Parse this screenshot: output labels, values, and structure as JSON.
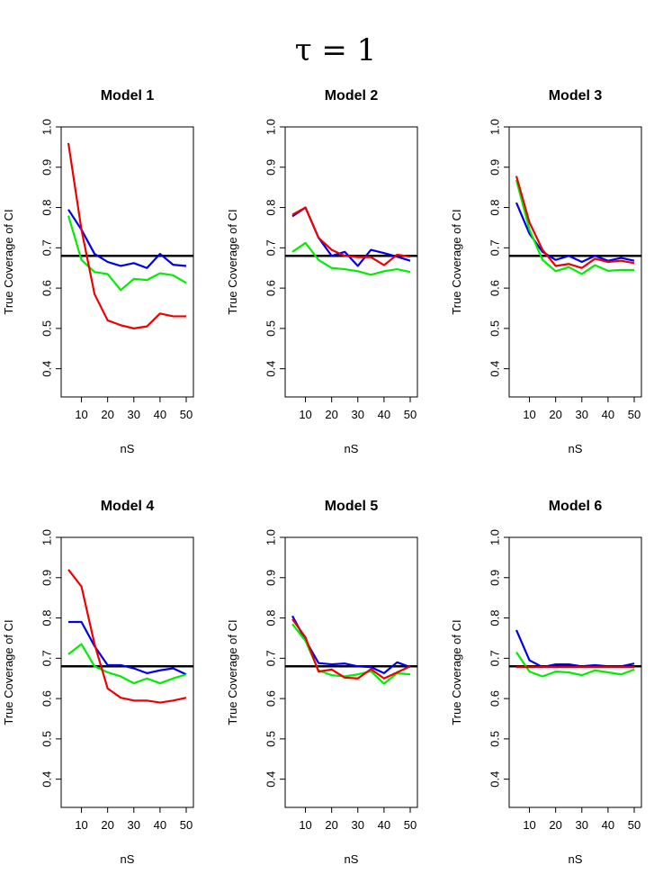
{
  "figure": {
    "suptitle": "τ = 1"
  },
  "chart_data": [
    {
      "type": "line",
      "title": "Model 1",
      "xlabel": "nS",
      "ylabel": "True Coverage of CI",
      "x": [
        5,
        10,
        15,
        20,
        25,
        30,
        35,
        40,
        45,
        50
      ],
      "xticks": [
        10,
        20,
        30,
        40,
        50
      ],
      "yticks": [
        0.4,
        0.5,
        0.6,
        0.7,
        0.8,
        0.9,
        1.0
      ],
      "xlim": [
        5,
        50
      ],
      "ylim": [
        0.33,
        1.0
      ],
      "reference_line": 0.68,
      "grid": false,
      "series": [
        {
          "color": "#0000ee",
          "values": [
            0.795,
            0.745,
            0.685,
            0.665,
            0.655,
            0.662,
            0.65,
            0.685,
            0.658,
            0.655
          ]
        },
        {
          "color": "#00ee00",
          "values": [
            0.78,
            0.67,
            0.64,
            0.635,
            0.595,
            0.623,
            0.62,
            0.637,
            0.632,
            0.613
          ]
        },
        {
          "color": "#ee0000",
          "values": [
            0.96,
            0.745,
            0.585,
            0.52,
            0.508,
            0.5,
            0.505,
            0.537,
            0.53,
            0.53
          ]
        }
      ]
    },
    {
      "type": "line",
      "title": "Model 2",
      "xlabel": "nS",
      "ylabel": "True Coverage of CI",
      "x": [
        5,
        10,
        15,
        20,
        25,
        30,
        35,
        40,
        45,
        50
      ],
      "xticks": [
        10,
        20,
        30,
        40,
        50
      ],
      "yticks": [
        0.4,
        0.5,
        0.6,
        0.7,
        0.8,
        0.9,
        1.0
      ],
      "xlim": [
        5,
        50
      ],
      "ylim": [
        0.33,
        1.0
      ],
      "reference_line": 0.68,
      "grid": false,
      "series": [
        {
          "color": "#0000ee",
          "values": [
            0.778,
            0.8,
            0.725,
            0.68,
            0.69,
            0.655,
            0.695,
            0.687,
            0.678,
            0.668
          ]
        },
        {
          "color": "#00ee00",
          "values": [
            0.69,
            0.712,
            0.67,
            0.65,
            0.647,
            0.642,
            0.633,
            0.642,
            0.647,
            0.64
          ]
        },
        {
          "color": "#ee0000",
          "values": [
            0.782,
            0.8,
            0.725,
            0.695,
            0.68,
            0.677,
            0.677,
            0.657,
            0.683,
            0.678
          ]
        }
      ]
    },
    {
      "type": "line",
      "title": "Model 3",
      "xlabel": "nS",
      "ylabel": "True Coverage of CI",
      "x": [
        5,
        10,
        15,
        20,
        25,
        30,
        35,
        40,
        45,
        50
      ],
      "xticks": [
        10,
        20,
        30,
        40,
        50
      ],
      "yticks": [
        0.4,
        0.5,
        0.6,
        0.7,
        0.8,
        0.9,
        1.0
      ],
      "xlim": [
        5,
        50
      ],
      "ylim": [
        0.33,
        1.0
      ],
      "reference_line": 0.68,
      "grid": false,
      "series": [
        {
          "color": "#0000ee",
          "values": [
            0.812,
            0.735,
            0.69,
            0.67,
            0.68,
            0.665,
            0.68,
            0.668,
            0.675,
            0.668
          ]
        },
        {
          "color": "#00ee00",
          "values": [
            0.868,
            0.745,
            0.67,
            0.642,
            0.652,
            0.635,
            0.657,
            0.643,
            0.645,
            0.645
          ]
        },
        {
          "color": "#ee0000",
          "values": [
            0.878,
            0.763,
            0.695,
            0.655,
            0.66,
            0.65,
            0.673,
            0.665,
            0.668,
            0.662
          ]
        }
      ]
    },
    {
      "type": "line",
      "title": "Model 4",
      "xlabel": "nS",
      "ylabel": "True Coverage of CI",
      "x": [
        5,
        10,
        15,
        20,
        25,
        30,
        35,
        40,
        45,
        50
      ],
      "xticks": [
        10,
        20,
        30,
        40,
        50
      ],
      "yticks": [
        0.4,
        0.5,
        0.6,
        0.7,
        0.8,
        0.9,
        1.0
      ],
      "xlim": [
        5,
        50
      ],
      "ylim": [
        0.33,
        1.0
      ],
      "reference_line": 0.68,
      "grid": false,
      "series": [
        {
          "color": "#0000ee",
          "values": [
            0.79,
            0.79,
            0.73,
            0.683,
            0.683,
            0.675,
            0.663,
            0.67,
            0.675,
            0.66
          ]
        },
        {
          "color": "#00ee00",
          "values": [
            0.71,
            0.735,
            0.68,
            0.665,
            0.655,
            0.638,
            0.65,
            0.638,
            0.65,
            0.66
          ]
        },
        {
          "color": "#ee0000",
          "values": [
            0.92,
            0.878,
            0.735,
            0.625,
            0.602,
            0.595,
            0.595,
            0.59,
            0.595,
            0.602
          ]
        }
      ]
    },
    {
      "type": "line",
      "title": "Model 5",
      "xlabel": "nS",
      "ylabel": "True Coverage of CI",
      "x": [
        5,
        10,
        15,
        20,
        25,
        30,
        35,
        40,
        45,
        50
      ],
      "xticks": [
        10,
        20,
        30,
        40,
        50
      ],
      "yticks": [
        0.4,
        0.5,
        0.6,
        0.7,
        0.8,
        0.9,
        1.0
      ],
      "xlim": [
        5,
        50
      ],
      "ylim": [
        0.33,
        1.0
      ],
      "reference_line": 0.68,
      "grid": false,
      "series": [
        {
          "color": "#0000ee",
          "values": [
            0.805,
            0.745,
            0.688,
            0.685,
            0.687,
            0.68,
            0.678,
            0.663,
            0.69,
            0.678
          ]
        },
        {
          "color": "#00ee00",
          "values": [
            0.785,
            0.743,
            0.67,
            0.658,
            0.655,
            0.66,
            0.668,
            0.637,
            0.663,
            0.66
          ]
        },
        {
          "color": "#ee0000",
          "values": [
            0.797,
            0.752,
            0.667,
            0.672,
            0.652,
            0.65,
            0.673,
            0.65,
            0.665,
            0.68
          ]
        }
      ]
    },
    {
      "type": "line",
      "title": "Model 6",
      "xlabel": "nS",
      "ylabel": "True Coverage of CI",
      "x": [
        5,
        10,
        15,
        20,
        25,
        30,
        35,
        40,
        45,
        50
      ],
      "xticks": [
        10,
        20,
        30,
        40,
        50
      ],
      "yticks": [
        0.4,
        0.5,
        0.6,
        0.7,
        0.8,
        0.9,
        1.0
      ],
      "xlim": [
        5,
        50
      ],
      "ylim": [
        0.33,
        1.0
      ],
      "reference_line": 0.68,
      "grid": false,
      "series": [
        {
          "color": "#0000ee",
          "values": [
            0.77,
            0.695,
            0.678,
            0.685,
            0.685,
            0.68,
            0.683,
            0.68,
            0.68,
            0.687
          ]
        },
        {
          "color": "#00ee00",
          "values": [
            0.715,
            0.667,
            0.655,
            0.667,
            0.665,
            0.658,
            0.67,
            0.665,
            0.66,
            0.672
          ]
        },
        {
          "color": "#ee0000",
          "values": [
            0.678,
            0.678,
            0.678,
            0.678,
            0.678,
            0.678,
            0.678,
            0.678,
            0.678,
            0.678
          ]
        }
      ]
    }
  ]
}
